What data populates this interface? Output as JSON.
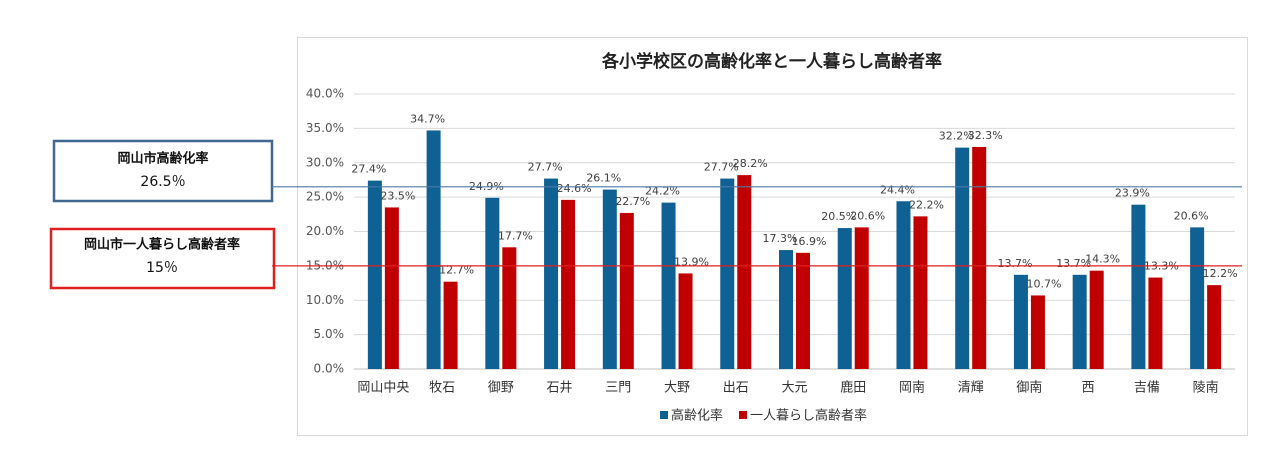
{
  "chart_data": {
    "type": "bar",
    "title": "各小学校区の高齢化率と一人暮らし高齢者率",
    "categories": [
      "岡山中央",
      "牧石",
      "御野",
      "石井",
      "三門",
      "大野",
      "出石",
      "大元",
      "鹿田",
      "岡南",
      "清輝",
      "御南",
      "西",
      "吉備",
      "陵南"
    ],
    "series": [
      {
        "name": "高齢化率",
        "color": "#0f6193",
        "values": [
          27.4,
          34.7,
          24.9,
          27.7,
          26.1,
          24.2,
          27.7,
          17.3,
          20.5,
          24.4,
          32.2,
          13.7,
          13.7,
          23.9,
          20.6
        ],
        "value_labels": [
          "27.4%",
          "34.7%",
          "24.9%",
          "27.7%",
          "26.1%",
          "24.2%",
          "27.7%",
          "17.3%",
          "20.5%",
          "24.4%",
          "32.2%",
          "13.7%",
          "13.7%",
          "23.9%",
          "20.6%"
        ]
      },
      {
        "name": "一人暮らし高齢者率",
        "color": "#c00000",
        "values": [
          23.5,
          12.7,
          17.7,
          24.6,
          22.7,
          13.9,
          28.2,
          16.9,
          20.6,
          22.2,
          32.3,
          10.7,
          14.3,
          13.3,
          12.2
        ],
        "value_labels": [
          "23.5%",
          "12.7%",
          "17.7%",
          "24.6%",
          "22.7%",
          "13.9%",
          "28.2%",
          "16.9%",
          "20.6%",
          "22.2%",
          "32.3%",
          "10.7%",
          "14.3%",
          "13.3%",
          "12.2%"
        ]
      }
    ],
    "ylim": [
      0,
      40
    ],
    "yticks": [
      {
        "value": 0,
        "label": "0.0%"
      },
      {
        "value": 5,
        "label": "5.0%"
      },
      {
        "value": 10,
        "label": "10.0%"
      },
      {
        "value": 15,
        "label": "15.0%"
      },
      {
        "value": 20,
        "label": "20.0%"
      },
      {
        "value": 25,
        "label": "25.0%"
      },
      {
        "value": 30,
        "label": "30.0%"
      },
      {
        "value": 35,
        "label": "35.0%"
      },
      {
        "value": 40,
        "label": "40.0%"
      }
    ],
    "grid": true,
    "legend": "bottom",
    "reference_lines": [
      {
        "name": "岡山市高齢化率",
        "value": 26.5,
        "value_label": "26.5％",
        "color": "#4a7aa8"
      },
      {
        "name": "岡山市一人暮らし高齢者率",
        "value": 15,
        "value_label": "15％",
        "color": "#e02020"
      }
    ]
  }
}
